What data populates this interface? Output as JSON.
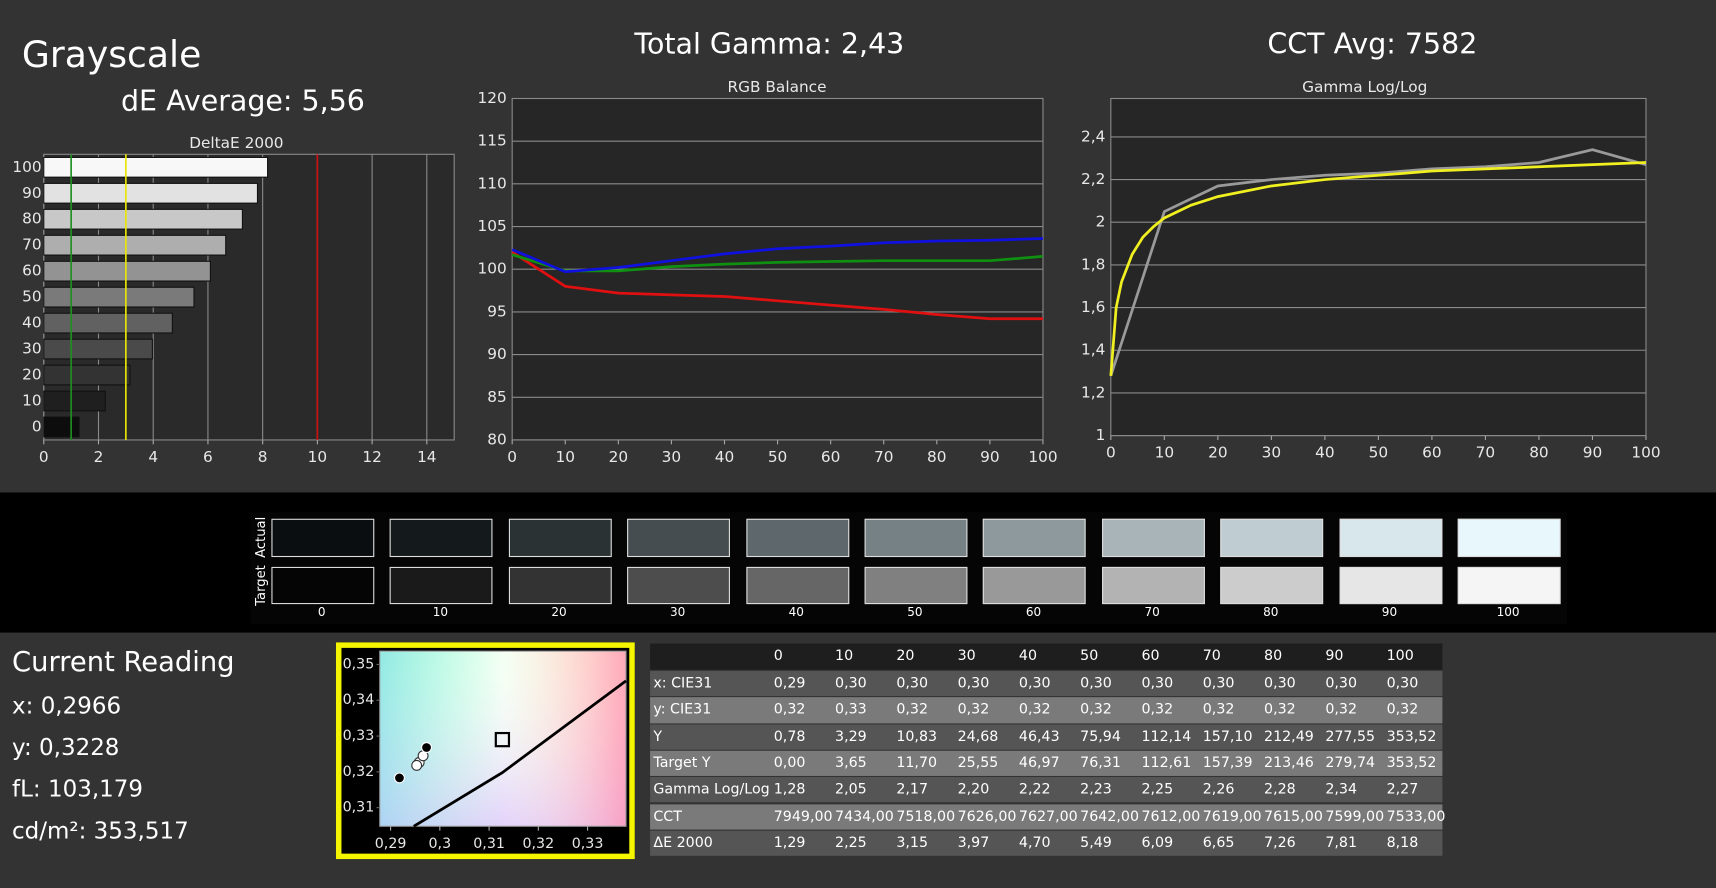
{
  "header": {
    "title": "Grayscale",
    "de_average": "dE Average: 5,56",
    "total_gamma": "Total Gamma: 2,43",
    "cct_avg": "CCT Avg: 7582"
  },
  "chart_data": [
    {
      "type": "bar",
      "orientation": "horizontal",
      "title": "DeltaE 2000",
      "categories": [
        "0",
        "10",
        "20",
        "30",
        "40",
        "50",
        "60",
        "70",
        "80",
        "90",
        "100"
      ],
      "values": [
        1.29,
        2.25,
        3.15,
        3.97,
        4.7,
        5.49,
        6.09,
        6.65,
        7.26,
        7.81,
        8.18
      ],
      "colors": [
        "#0d0d0d",
        "#1f1f1f",
        "#333333",
        "#4a4a4a",
        "#616161",
        "#7a7a7a",
        "#939393",
        "#aeaeae",
        "#c8c8c8",
        "#e2e2e2",
        "#f8f8f8"
      ],
      "xlim": [
        0,
        15
      ],
      "xticks": [
        0,
        2,
        4,
        6,
        8,
        10,
        12,
        14
      ],
      "grid": "x",
      "reference_lines": [
        {
          "value": 1,
          "color": "#1f8f1f"
        },
        {
          "value": 3,
          "color": "#e8e800"
        },
        {
          "value": 10,
          "color": "#d01010"
        }
      ]
    },
    {
      "type": "line",
      "title": "RGB Balance",
      "x": [
        0,
        10,
        20,
        30,
        40,
        50,
        60,
        70,
        80,
        90,
        100
      ],
      "series": [
        {
          "color": "#e01010",
          "values": [
            102,
            98,
            97.2,
            97,
            96.8,
            96.3,
            95.8,
            95.3,
            94.7,
            94.2,
            94.2
          ]
        },
        {
          "color": "#109010",
          "values": [
            101.7,
            99.8,
            99.8,
            100.3,
            100.6,
            100.8,
            100.9,
            101,
            101,
            101,
            101.5
          ]
        },
        {
          "color": "#1010e0",
          "values": [
            102.3,
            99.7,
            100.2,
            101,
            101.8,
            102.4,
            102.7,
            103.1,
            103.3,
            103.4,
            103.6
          ]
        }
      ],
      "xlim": [
        0,
        100
      ],
      "xticks": [
        0,
        10,
        20,
        30,
        40,
        50,
        60,
        70,
        80,
        90,
        100
      ],
      "ylim": [
        80,
        120
      ],
      "yticks": [
        80,
        85,
        90,
        95,
        100,
        105,
        110,
        115,
        120
      ],
      "grid": "y"
    },
    {
      "type": "line",
      "title": "Gamma Log/Log",
      "series": [
        {
          "color": "#9a9a9a",
          "x": [
            0,
            10,
            20,
            30,
            40,
            50,
            60,
            70,
            80,
            90,
            100
          ],
          "values": [
            1.28,
            2.05,
            2.17,
            2.2,
            2.22,
            2.23,
            2.25,
            2.26,
            2.28,
            2.34,
            2.27
          ]
        },
        {
          "color": "#f0f020",
          "x": [
            0,
            1,
            2,
            4,
            6,
            8,
            10,
            15,
            20,
            30,
            40,
            50,
            60,
            70,
            80,
            90,
            100
          ],
          "values": [
            1.28,
            1.6,
            1.72,
            1.85,
            1.93,
            1.98,
            2.02,
            2.08,
            2.12,
            2.17,
            2.2,
            2.22,
            2.24,
            2.25,
            2.26,
            2.27,
            2.28
          ]
        }
      ],
      "xlim": [
        0,
        100
      ],
      "xticks": [
        0,
        10,
        20,
        30,
        40,
        50,
        60,
        70,
        80,
        90,
        100
      ],
      "ylim": [
        1,
        2.58
      ],
      "yticks": [
        1,
        {
          "value": 1.2,
          "label": "1,2"
        },
        {
          "value": 1.4,
          "label": "1,4"
        },
        {
          "value": 1.6,
          "label": "1,6"
        },
        {
          "value": 1.8,
          "label": "1,8"
        },
        2,
        {
          "value": 2.2,
          "label": "2,2"
        },
        {
          "value": 2.4,
          "label": "2,4"
        }
      ],
      "grid": "y"
    },
    {
      "type": "scatter",
      "series": [
        {
          "kind": "line",
          "color": "#000000",
          "x": [
            0.2947,
            0.3127,
            0.3378
          ],
          "values": [
            0.3048,
            0.3198,
            0.3454
          ]
        },
        {
          "kind": "square",
          "color": "#000000",
          "x": [
            0.3127
          ],
          "values": [
            0.329
          ]
        },
        {
          "kind": "point",
          "color": "#ffffff",
          "x": [
            0.2958,
            0.2966,
            0.2953
          ],
          "values": [
            0.3226,
            0.3245,
            0.3218
          ]
        },
        {
          "kind": "point",
          "color": "#000000",
          "x": [
            0.2918,
            0.2973
          ],
          "values": [
            0.3183,
            0.3268
          ]
        }
      ],
      "xlim": [
        0.2878,
        0.3378
      ],
      "xticks": [
        {
          "value": 0.29,
          "label": "0,29"
        },
        {
          "value": 0.3,
          "label": "0,3"
        },
        {
          "value": 0.31,
          "label": "0,31"
        },
        {
          "value": 0.32,
          "label": "0,32"
        },
        {
          "value": 0.33,
          "label": "0,33"
        }
      ],
      "ylim": [
        0.3048,
        0.3537
      ],
      "yticks": [
        {
          "value": 0.31,
          "label": "0,31"
        },
        {
          "value": 0.32,
          "label": "0,32"
        },
        {
          "value": 0.33,
          "label": "0,33"
        },
        {
          "value": 0.34,
          "label": "0,34"
        },
        {
          "value": 0.35,
          "label": "0,35"
        }
      ],
      "grid": false
    }
  ],
  "swatches": {
    "row_labels": [
      "Actual",
      "Target"
    ],
    "labels": [
      "0",
      "10",
      "20",
      "30",
      "40",
      "50",
      "60",
      "70",
      "80",
      "90",
      "100"
    ],
    "actual": [
      "#0b0e10",
      "#141a1c",
      "#2a3233",
      "#454d50",
      "#5e676b",
      "#768185",
      "#8e999d",
      "#a8b4b8",
      "#bfcdd2",
      "#d8e7ec",
      "#e8f7fc"
    ],
    "target": [
      "#050505",
      "#1a1a1a",
      "#333333",
      "#4d4d4d",
      "#666666",
      "#808080",
      "#999999",
      "#b3b3b3",
      "#cccccc",
      "#e6e6e6",
      "#f5f5f5"
    ]
  },
  "reading": {
    "title": "Current Reading",
    "lines": [
      "x: 0,2966",
      "y: 0,3228",
      "fL: 103,179",
      "cd/m²: 353,517"
    ]
  },
  "table": {
    "header": [
      "0",
      "10",
      "20",
      "30",
      "40",
      "50",
      "60",
      "70",
      "80",
      "90",
      "100"
    ],
    "rows": [
      {
        "label": "x: CIE31",
        "values": [
          "0,29",
          "0,30",
          "0,30",
          "0,30",
          "0,30",
          "0,30",
          "0,30",
          "0,30",
          "0,30",
          "0,30",
          "0,30"
        ]
      },
      {
        "label": "y: CIE31",
        "values": [
          "0,32",
          "0,33",
          "0,32",
          "0,32",
          "0,32",
          "0,32",
          "0,32",
          "0,32",
          "0,32",
          "0,32",
          "0,32"
        ]
      },
      {
        "label": "Y",
        "values": [
          "0,78",
          "3,29",
          "10,83",
          "24,68",
          "46,43",
          "75,94",
          "112,14",
          "157,10",
          "212,49",
          "277,55",
          "353,52"
        ]
      },
      {
        "label": "Target Y",
        "values": [
          "0,00",
          "3,65",
          "11,70",
          "25,55",
          "46,97",
          "76,31",
          "112,61",
          "157,39",
          "213,46",
          "279,74",
          "353,52"
        ]
      },
      {
        "label": "Gamma Log/Log",
        "values": [
          "1,28",
          "2,05",
          "2,17",
          "2,20",
          "2,22",
          "2,23",
          "2,25",
          "2,26",
          "2,28",
          "2,34",
          "2,27"
        ]
      },
      {
        "label": "CCT",
        "values": [
          "7949,00",
          "7434,00",
          "7518,00",
          "7626,00",
          "7627,00",
          "7642,00",
          "7612,00",
          "7619,00",
          "7615,00",
          "7599,00",
          "7533,00"
        ]
      },
      {
        "label": "ΔE 2000",
        "values": [
          "1,29",
          "2,25",
          "3,15",
          "3,97",
          "4,70",
          "5,49",
          "6,09",
          "6,65",
          "7,26",
          "7,81",
          "8,18"
        ]
      }
    ]
  }
}
